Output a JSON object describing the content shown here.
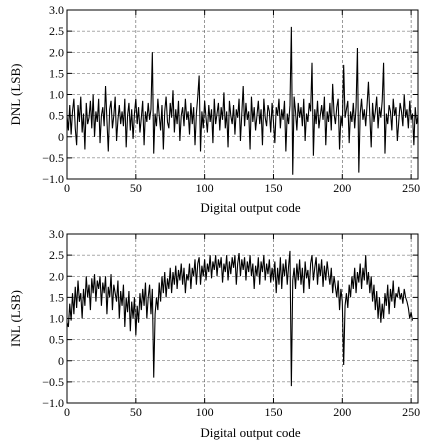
{
  "chart_data": [
    {
      "type": "line",
      "ylabel": "DNL (LSB)",
      "xlabel": "Digital output code",
      "xlim": [
        0,
        255
      ],
      "ylim": [
        -1.0,
        3.0
      ],
      "x_ticks": [
        0,
        50,
        100,
        150,
        200,
        250
      ],
      "x_tick_labels": [
        "0",
        "50",
        "100",
        "150",
        "200",
        "250"
      ],
      "y_ticks": [
        -1.0,
        -0.5,
        0,
        0.5,
        1.0,
        1.5,
        2.0,
        2.5,
        3.0
      ],
      "y_tick_labels": [
        "−1.0",
        "−0.5",
        "0",
        "0.5",
        "1.0",
        "1.5",
        "2.0",
        "2.5",
        "3.0"
      ],
      "grid": "dashed",
      "series": [
        {
          "values": [
            0.5,
            0.15,
            0.75,
            0.05,
            0.6,
            0.9,
            0.2,
            -0.2,
            0.75,
            0.35,
            0.95,
            0.1,
            0.55,
            -0.3,
            0.8,
            0.3,
            0.45,
            0.85,
            0.2,
            1.0,
            0.0,
            0.6,
            0.35,
            0.9,
            -0.15,
            0.5,
            0.7,
            0.25,
            1.2,
            0.4,
            -0.35,
            0.65,
            0.85,
            0.2,
            0.5,
            0.95,
            -0.1,
            0.4,
            0.75,
            0.3,
            0.6,
            0.25,
            0.9,
            -0.25,
            0.5,
            0.8,
            0.15,
            0.65,
            -0.05,
            0.55,
            0.9,
            0.3,
            0.7,
            0.1,
            0.45,
            0.85,
            -0.2,
            0.6,
            0.35,
            0.8,
            0.4,
            0.65,
            2.0,
            -0.4,
            0.55,
            0.25,
            0.9,
            0.5,
            0.15,
            0.75,
            -0.3,
            0.6,
            0.95,
            0.35,
            0.2,
            0.8,
            0.45,
            1.1,
            0.1,
            0.65,
            0.3,
            0.85,
            -0.1,
            0.5,
            0.7,
            0.25,
            0.9,
            0.4,
            0.6,
            0.05,
            0.8,
            0.3,
            0.7,
            -0.2,
            0.55,
            0.95,
            1.45,
            -0.35,
            0.6,
            0.2,
            0.85,
            0.45,
            0.1,
            0.75,
            0.35,
            0.65,
            -0.15,
            0.9,
            0.3,
            0.55,
            0.8,
            0.15,
            0.7,
            0.4,
            1.05,
            0.2,
            0.6,
            -0.25,
            0.85,
            0.5,
            0.3,
            0.75,
            0.05,
            0.65,
            0.45,
            0.9,
            -0.1,
            0.55,
            1.2,
            0.25,
            0.8,
            0.4,
            0.6,
            -0.3,
            0.95,
            0.35,
            0.7,
            0.15,
            0.5,
            0.85,
            0.3,
            0.65,
            -0.2,
            0.9,
            0.45,
            0.25,
            0.75,
            0.6,
            0.1,
            0.8,
            0.35,
            -0.15,
            0.7,
            0.5,
            0.9,
            0.2,
            0.65,
            0.4,
            0.85,
            -0.35,
            0.55,
            0.3,
            0.75,
            2.6,
            -0.9,
            0.95,
            0.6,
            0.15,
            0.8,
            0.45,
            0.7,
            0.25,
            0.9,
            -0.1,
            0.55,
            0.35,
            0.8,
            0.6,
            1.75,
            -0.45,
            0.65,
            0.3,
            0.85,
            0.2,
            0.5,
            0.75,
            0.4,
            0.95,
            -0.2,
            0.6,
            0.35,
            0.8,
            0.15,
            1.25,
            0.55,
            0.3,
            0.7,
            0.9,
            -0.3,
            0.5,
            0.25,
            1.7,
            0.45,
            0.65,
            0.85,
            -0.15,
            0.6,
            0.35,
            0.8,
            0.2,
            0.7,
            2.1,
            -0.85,
            0.55,
            0.9,
            0.4,
            0.65,
            0.25,
            0.75,
            1.3,
            0.5,
            -0.25,
            0.8,
            0.35,
            0.6,
            0.95,
            0.2,
            0.7,
            0.45,
            0.85,
            1.75,
            -0.4,
            0.55,
            0.3,
            0.75,
            0.6,
            0.15,
            0.9,
            0.5,
            0.7,
            -0.1,
            0.35,
            0.8,
            0.6,
            0.25,
            1.0,
            0.45,
            0.65,
            0.2,
            0.85,
            0.4,
            0.55,
            -0.2,
            0.7,
            0.3,
            0.5
          ]
        }
      ]
    },
    {
      "type": "line",
      "ylabel": "INL (LSB)",
      "xlabel": "Digital output code",
      "xlim": [
        0,
        255
      ],
      "ylim": [
        -1.0,
        3.0
      ],
      "x_ticks": [
        0,
        50,
        100,
        150,
        200,
        250
      ],
      "x_tick_labels": [
        "0",
        "50",
        "100",
        "150",
        "200",
        "250"
      ],
      "y_ticks": [
        -1.0,
        -0.5,
        0,
        0.5,
        1.0,
        1.5,
        2.0,
        2.5,
        3.0
      ],
      "y_tick_labels": [
        "−1.0",
        "−0.5",
        "0",
        "0.5",
        "1.0",
        "1.5",
        "2.0",
        "2.5",
        "3.0"
      ],
      "grid": "dashed",
      "series": [
        {
          "values": [
            0.9,
            0.8,
            1.35,
            0.95,
            1.6,
            1.1,
            1.75,
            1.25,
            1.9,
            1.4,
            1.6,
            1.0,
            1.7,
            1.3,
            2.0,
            1.5,
            1.8,
            1.2,
            1.95,
            1.6,
            2.05,
            1.4,
            1.9,
            1.7,
            2.0,
            1.3,
            1.85,
            1.6,
            2.0,
            1.1,
            1.75,
            1.5,
            2.05,
            1.2,
            1.8,
            1.6,
            1.4,
            1.9,
            1.0,
            1.65,
            1.3,
            1.8,
            0.8,
            1.5,
            1.15,
            1.65,
            0.7,
            1.4,
            1.0,
            1.5,
            0.6,
            1.3,
            0.9,
            1.6,
            1.2,
            1.7,
            1.3,
            1.85,
            1.0,
            1.5,
            1.8,
            1.1,
            1.7,
            -0.4,
            1.1,
            1.5,
            1.2,
            1.85,
            1.4,
            2.0,
            1.6,
            2.1,
            1.5,
            1.95,
            1.7,
            2.2,
            1.6,
            2.1,
            1.8,
            2.25,
            1.7,
            2.15,
            1.9,
            2.3,
            1.8,
            2.2,
            1.6,
            2.05,
            1.9,
            2.3,
            1.7,
            2.2,
            2.0,
            2.4,
            1.8,
            2.3,
            2.45,
            1.8,
            2.25,
            2.0,
            2.4,
            1.9,
            2.3,
            2.1,
            2.5,
            1.95,
            2.35,
            2.15,
            2.5,
            2.0,
            2.4,
            2.2,
            2.45,
            1.85,
            2.3,
            2.1,
            2.5,
            1.9,
            2.35,
            2.05,
            2.45,
            2.2,
            2.5,
            1.8,
            2.3,
            2.55,
            2.0,
            2.4,
            2.15,
            2.45,
            1.9,
            2.35,
            2.1,
            2.5,
            2.0,
            2.3,
            1.7,
            2.25,
            2.0,
            2.45,
            1.8,
            2.35,
            2.1,
            2.5,
            1.9,
            2.3,
            2.05,
            2.4,
            1.85,
            2.2,
            1.9,
            2.35,
            1.6,
            2.2,
            1.8,
            2.45,
            1.7,
            2.3,
            2.0,
            2.4,
            1.8,
            2.25,
            2.6,
            -0.6,
            1.9,
            2.2,
            1.7,
            2.3,
            1.9,
            2.4,
            1.8,
            2.2,
            1.6,
            2.35,
            1.95,
            2.15,
            1.7,
            2.3,
            2.5,
            1.9,
            2.2,
            2.45,
            1.8,
            2.3,
            2.0,
            2.4,
            1.75,
            2.25,
            1.9,
            2.35,
            2.05,
            1.8,
            2.2,
            1.6,
            2.0,
            1.75,
            1.5,
            1.9,
            1.2,
            1.7,
            1.4,
            -0.1,
            1.3,
            1.6,
            1.25,
            1.8,
            1.5,
            2.0,
            1.7,
            2.2,
            1.6,
            2.1,
            1.85,
            2.3,
            1.7,
            2.2,
            1.9,
            2.5,
            1.8,
            2.1,
            1.6,
            2.0,
            1.4,
            1.8,
            1.2,
            1.65,
            1.0,
            1.5,
            0.9,
            1.35,
            1.0,
            1.6,
            1.3,
            1.8,
            1.1,
            1.7,
            1.4,
            1.9,
            1.25,
            1.6,
            1.5,
            1.75,
            1.45,
            1.6,
            1.35,
            1.7,
            1.5,
            1.4,
            1.25,
            1.0,
            1.15,
            0.95
          ]
        }
      ]
    }
  ]
}
